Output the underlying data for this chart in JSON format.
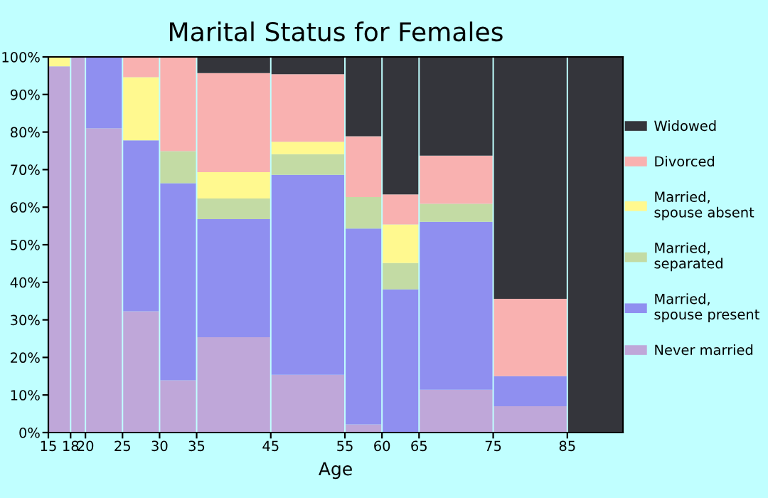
{
  "chart_data": {
    "type": "bar",
    "title": "Marital Status for Females",
    "xlabel": "Age",
    "stacked": true,
    "x": [
      16.5,
      19,
      22.5,
      27.5,
      32.5,
      40,
      50,
      57.5,
      62.5,
      70,
      80,
      88.75
    ],
    "series": [
      {
        "name": "Never married",
        "color": "#bfa7d9",
        "values": [
          97.5,
          100,
          81,
          32.3,
          13.9,
          25.4,
          15.4,
          2.2,
          0,
          11.4,
          7,
          0
        ]
      },
      {
        "name": "Married, spouse present",
        "color": "#8f8ff0",
        "values": [
          0,
          0,
          19,
          45.5,
          52.5,
          31.4,
          53.2,
          52.1,
          38.1,
          44.7,
          8,
          0
        ]
      },
      {
        "name": "Married, separated",
        "color": "#c3dba4",
        "values": [
          0,
          0,
          0,
          0,
          8.5,
          5.5,
          5.5,
          8.4,
          7,
          4.8,
          0,
          0
        ]
      },
      {
        "name": "Married, spouse absent",
        "color": "#fff98f",
        "values": [
          2.5,
          0,
          0,
          16.8,
          0,
          7,
          3.3,
          0,
          10.3,
          0,
          0,
          0
        ]
      },
      {
        "name": "Divorced",
        "color": "#f9b1b0",
        "values": [
          0,
          0,
          0,
          5.4,
          25.1,
          26.4,
          18,
          16.2,
          8,
          12.8,
          20.6,
          0
        ]
      },
      {
        "name": "Widowed",
        "color": "#34353b",
        "values": [
          0,
          0,
          0,
          0,
          0,
          4.3,
          4.6,
          21.1,
          36.6,
          26.3,
          64.4,
          100
        ]
      }
    ],
    "xlim": [
      15,
      92.5
    ],
    "xticks": [
      15,
      18,
      20,
      25,
      30,
      35,
      45,
      55,
      60,
      65,
      75,
      85
    ],
    "ylim": [
      0,
      100
    ],
    "yticks": [
      {
        "value": 0,
        "label": "0%"
      },
      {
        "value": 10,
        "label": "10%"
      },
      {
        "value": 20,
        "label": "20%"
      },
      {
        "value": 30,
        "label": "30%"
      },
      {
        "value": 40,
        "label": "40%"
      },
      {
        "value": 50,
        "label": "50%"
      },
      {
        "value": 60,
        "label": "60%"
      },
      {
        "value": 70,
        "label": "70%"
      },
      {
        "value": 80,
        "label": "80%"
      },
      {
        "value": 90,
        "label": "90%"
      },
      {
        "value": 100,
        "label": "100%"
      }
    ],
    "grid": false,
    "legend": "right"
  }
}
